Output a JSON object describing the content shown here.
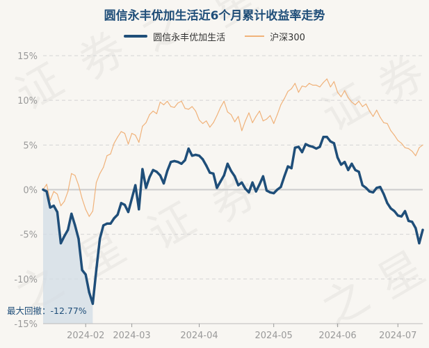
{
  "chart_data": {
    "type": "line",
    "title": "圆信永丰优加生活近6个月累计收益率走势",
    "yticks": [
      "15%",
      "10%",
      "5%",
      "0%",
      "-5%",
      "-10%",
      "-15%"
    ],
    "ylim": [
      -15,
      15
    ],
    "xticks": [
      "2024-02",
      "2024-03",
      "2024-04",
      "2024-05",
      "2024-06",
      "2024-07"
    ],
    "n_points": 108,
    "xtick_indices": [
      12,
      25,
      44,
      65,
      83,
      100
    ],
    "series": [
      {
        "name": "圆信永丰优加生活",
        "color": "#1f4e79",
        "values": [
          0,
          -0.2,
          -2,
          -1.8,
          -2.5,
          -6,
          -5.2,
          -4.5,
          -2.7,
          -4,
          -5.5,
          -9,
          -9.5,
          -11.5,
          -12.77,
          -9,
          -5.5,
          -4,
          -3.8,
          -3.8,
          -3.2,
          -2.8,
          -1.5,
          -1.7,
          -2.5,
          -1,
          0.5,
          -2.2,
          2.3,
          0.2,
          1.4,
          2.2,
          2,
          1.6,
          0.7,
          2.1,
          3.1,
          3.2,
          3.1,
          2.9,
          3.3,
          4.6,
          3.8,
          3.9,
          3.8,
          3.4,
          2.7,
          1.9,
          1.8,
          0.2,
          0.9,
          1.6,
          2.9,
          2.1,
          1.5,
          0.5,
          0.8,
          0.1,
          -0.3,
          0.8,
          -0.2,
          0.6,
          1.5,
          -0.1,
          -0.3,
          -0.4,
          0,
          0.3,
          1.5,
          2.6,
          2.4,
          4.7,
          4.8,
          4.2,
          5.1,
          4.9,
          4.8,
          4.6,
          4.8,
          5.9,
          5.9,
          5.4,
          5.2,
          3.6,
          2.8,
          3.1,
          2.2,
          2.9,
          2.2,
          2.0,
          0.5,
          0.2,
          -0.2,
          -0.3,
          0.2,
          0.3,
          -0.5,
          -1.5,
          -2.1,
          -2.4,
          -2.9,
          -3.0,
          -2.4,
          -3.5,
          -3.6,
          -4.3,
          -6,
          -4.5
        ]
      },
      {
        "name": "沪深300",
        "color": "#f0b27a",
        "values": [
          0,
          0.6,
          -1.2,
          -0.2,
          -0.5,
          -1.8,
          -1.3,
          -0.2,
          1.8,
          1.6,
          0.5,
          -1,
          -2.2,
          -3,
          -2.4,
          0.8,
          1.8,
          2.5,
          3.8,
          4,
          5.2,
          5.9,
          6.5,
          6.3,
          5.1,
          6.3,
          6.1,
          5.3,
          7.1,
          7.5,
          8.4,
          8.8,
          8.5,
          9.8,
          9.5,
          9.9,
          9.3,
          9.2,
          9.7,
          9.9,
          9.1,
          9.0,
          9.3,
          8.8,
          7.8,
          7.4,
          7.7,
          7.0,
          7.5,
          8.3,
          9.2,
          9.9,
          8.7,
          8.4,
          7.6,
          8.2,
          6.6,
          7.7,
          8.6,
          7.5,
          8.2,
          8.8,
          7.7,
          7.9,
          8.3,
          7.4,
          8.4,
          9.5,
          10.2,
          11.0,
          11.3,
          11.9,
          10.9,
          11.6,
          11.5,
          11.9,
          11.7,
          11.7,
          11.5,
          12.0,
          12.4,
          11.5,
          12.1,
          10.9,
          10.4,
          11.1,
          10.3,
          9.8,
          9.5,
          9.9,
          9.3,
          9.6,
          8.8,
          8.2,
          8.9,
          8.1,
          7.5,
          7.4,
          6.6,
          6.1,
          5.5,
          5.2,
          4.7,
          4.6,
          4.3,
          3.8,
          4.7,
          5.0
        ]
      }
    ],
    "max_drawdown_label": "最大回撤：-12.77%",
    "max_drawdown_range": [
      0,
      14
    ]
  },
  "colors": {
    "fund": "#1f4e79",
    "index": "#f0b27a",
    "drawdown_fill": "#d2dce6"
  },
  "watermark": "证券之星"
}
